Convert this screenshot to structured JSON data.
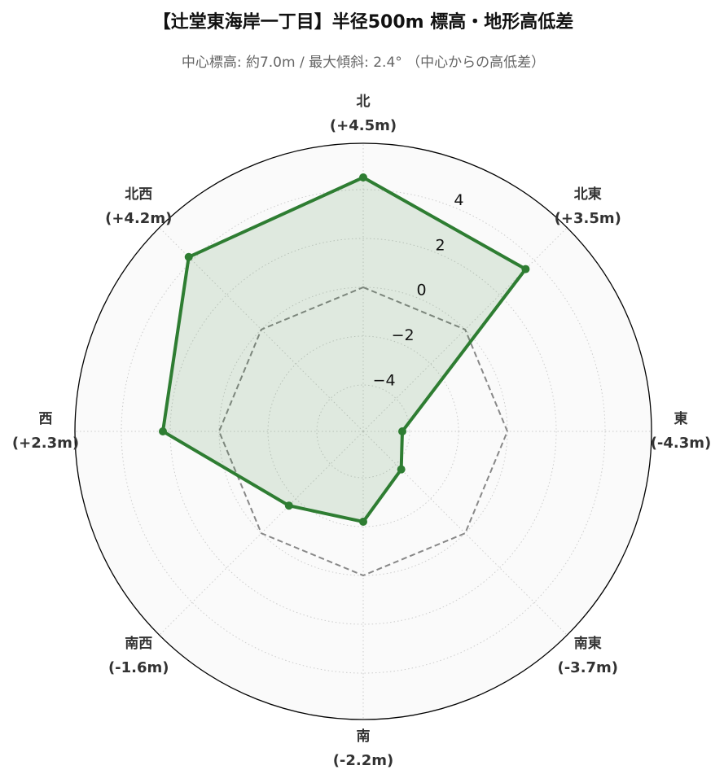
{
  "chart_data": {
    "type": "radar",
    "title": "【辻堂東海岸一丁目】半径500m 標高・地形高低差",
    "subtitle": "中心標高: 約7.0m / 最大傾斜: 2.4° （中心からの高低差）",
    "categories": [
      "北",
      "北東",
      "東",
      "南東",
      "南",
      "南西",
      "西",
      "北西"
    ],
    "values": [
      4.5,
      3.5,
      -4.3,
      -3.7,
      -2.2,
      -1.6,
      2.3,
      4.2
    ],
    "value_labels": [
      "(+4.5m)",
      "(+3.5m)",
      "(-4.3m)",
      "(-3.7m)",
      "(-2.2m)",
      "(-1.6m)",
      "(+2.3m)",
      "(+4.2m)"
    ],
    "color": "#2e7d32",
    "ylim": [
      -5.9,
      5.9
    ],
    "yticks": [
      {
        "value": -4,
        "label": "−4"
      },
      {
        "value": -2,
        "label": "−2"
      },
      0,
      2,
      4
    ],
    "reference_line": 0,
    "grid": true
  }
}
